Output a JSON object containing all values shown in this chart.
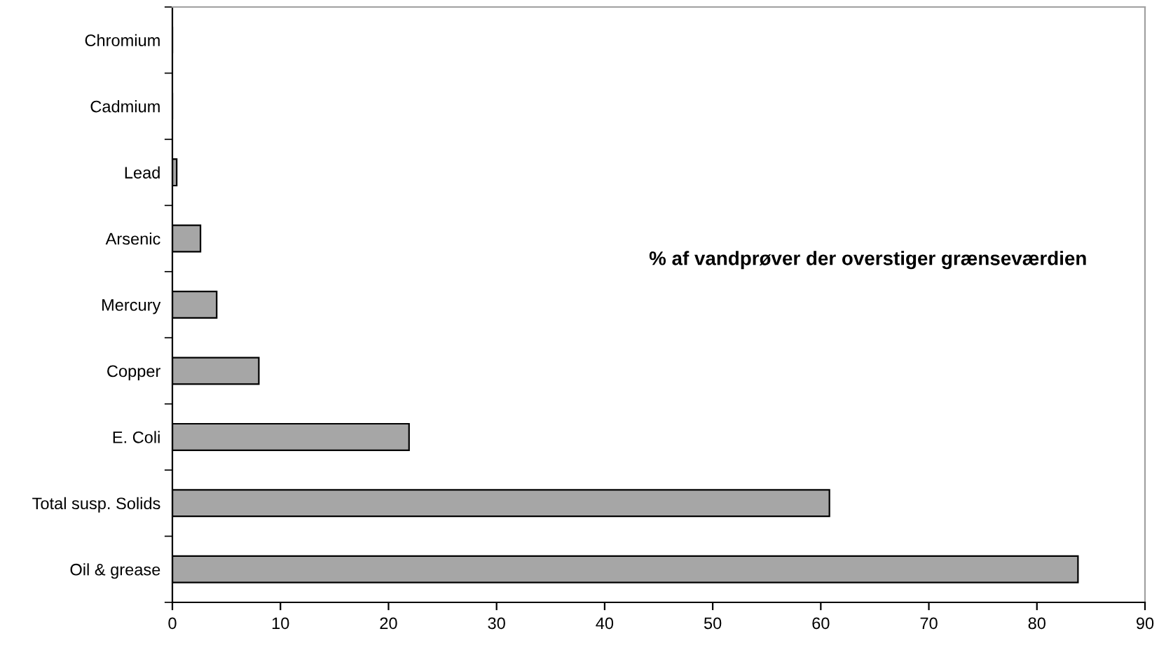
{
  "chart_data": {
    "type": "bar",
    "orientation": "horizontal",
    "title": "% af vandprøver der overstiger grænseværdien",
    "categories": [
      "Chromium",
      "Cadmium",
      "Lead",
      "Arsenic",
      "Mercury",
      "Copper",
      "E. Coli",
      "Total susp. Solids",
      "Oil & grease"
    ],
    "values": [
      0,
      0,
      0.4,
      2.6,
      4.1,
      8.0,
      21.9,
      60.8,
      83.8
    ],
    "color": "#a6a6a6",
    "xlim": [
      0,
      90
    ],
    "xticks": [
      0,
      10,
      20,
      30,
      40,
      50,
      60,
      70,
      80,
      90
    ],
    "grid": false,
    "legend": false
  }
}
